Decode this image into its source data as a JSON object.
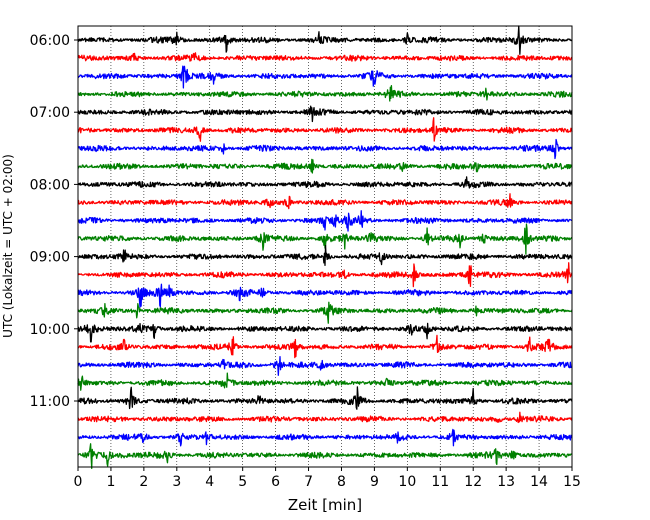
{
  "chart_data": {
    "type": "line",
    "title": "",
    "xlabel": "Zeit  [min]",
    "ylabel": "UTC (Lokalzeit = UTC + 02:00)",
    "xlim": [
      0,
      15
    ],
    "x_ticks": [
      0,
      1,
      2,
      3,
      4,
      5,
      6,
      7,
      8,
      9,
      10,
      11,
      12,
      13,
      14,
      15
    ],
    "x_tick_labels": [
      "0",
      "1",
      "2",
      "3",
      "4",
      "5",
      "6",
      "7",
      "8",
      "9",
      "10",
      "11",
      "12",
      "13",
      "14",
      "15"
    ],
    "y_tick_labels": [
      "06:00",
      "07:00",
      "08:00",
      "09:00",
      "10:00",
      "11:00"
    ],
    "grid": "vertical-dotted",
    "row_colors": [
      "#000000",
      "#ff0000",
      "#0000ff",
      "#008000"
    ],
    "rows": [
      {
        "start": "06:00",
        "color": "#000000",
        "events": [
          [
            3.0,
            6
          ],
          [
            4.5,
            10
          ],
          [
            7.3,
            6
          ],
          [
            13.4,
            14
          ],
          [
            10.0,
            5
          ]
        ]
      },
      {
        "start": "06:15",
        "color": "#ff0000",
        "events": [
          [
            3.6,
            10
          ],
          [
            1.7,
            4
          ]
        ]
      },
      {
        "start": "06:30",
        "color": "#0000ff",
        "events": [
          [
            3.2,
            10
          ],
          [
            3.3,
            8
          ],
          [
            9.0,
            12
          ],
          [
            4.1,
            5
          ]
        ]
      },
      {
        "start": "06:45",
        "color": "#008000",
        "events": [
          [
            9.5,
            9
          ],
          [
            12.4,
            4
          ]
        ]
      },
      {
        "start": "07:00",
        "color": "#000000",
        "events": [
          [
            7.1,
            8
          ]
        ]
      },
      {
        "start": "07:15",
        "color": "#ff0000",
        "events": [
          [
            3.7,
            12
          ],
          [
            10.8,
            10
          ]
        ]
      },
      {
        "start": "07:30",
        "color": "#0000ff",
        "events": [
          [
            4.4,
            5
          ],
          [
            14.5,
            10
          ]
        ]
      },
      {
        "start": "07:45",
        "color": "#008000",
        "events": [
          [
            7.1,
            8
          ],
          [
            9.9,
            8
          ],
          [
            12.1,
            5
          ]
        ]
      },
      {
        "start": "08:00",
        "color": "#000000",
        "events": [
          [
            11.8,
            4
          ]
        ]
      },
      {
        "start": "08:15",
        "color": "#ff0000",
        "events": [
          [
            5.8,
            8
          ],
          [
            6.4,
            6
          ],
          [
            13.1,
            6
          ]
        ]
      },
      {
        "start": "08:30",
        "color": "#0000ff",
        "events": [
          [
            7.5,
            9
          ],
          [
            8.2,
            12
          ],
          [
            8.6,
            8
          ],
          [
            7.8,
            6
          ]
        ]
      },
      {
        "start": "08:45",
        "color": "#008000",
        "events": [
          [
            5.6,
            10
          ],
          [
            7.5,
            10
          ],
          [
            8.1,
            8
          ],
          [
            8.9,
            10
          ],
          [
            10.6,
            9
          ],
          [
            11.6,
            6
          ],
          [
            12.3,
            9
          ],
          [
            13.6,
            14
          ]
        ]
      },
      {
        "start": "09:00",
        "color": "#000000",
        "events": [
          [
            1.4,
            7
          ],
          [
            7.5,
            10
          ],
          [
            9.2,
            6
          ]
        ]
      },
      {
        "start": "09:15",
        "color": "#ff0000",
        "events": [
          [
            10.2,
            10
          ],
          [
            11.9,
            12
          ],
          [
            14.9,
            10
          ],
          [
            8.1,
            6
          ]
        ]
      },
      {
        "start": "09:30",
        "color": "#0000ff",
        "events": [
          [
            1.9,
            12
          ],
          [
            2.5,
            10
          ],
          [
            2.8,
            9
          ],
          [
            4.9,
            7
          ],
          [
            5.6,
            5
          ]
        ]
      },
      {
        "start": "09:45",
        "color": "#008000",
        "events": [
          [
            0.8,
            10
          ],
          [
            1.8,
            6
          ],
          [
            7.6,
            14
          ],
          [
            12.1,
            5
          ]
        ]
      },
      {
        "start": "10:00",
        "color": "#000000",
        "events": [
          [
            0.4,
            10
          ],
          [
            1.9,
            8
          ],
          [
            2.3,
            10
          ],
          [
            10.1,
            7
          ],
          [
            10.6,
            7
          ]
        ]
      },
      {
        "start": "10:15",
        "color": "#ff0000",
        "events": [
          [
            1.4,
            6
          ],
          [
            4.7,
            10
          ],
          [
            6.6,
            10
          ],
          [
            10.9,
            8
          ],
          [
            13.7,
            8
          ],
          [
            14.3,
            10
          ]
        ]
      },
      {
        "start": "10:30",
        "color": "#0000ff",
        "events": [
          [
            4.4,
            5
          ],
          [
            6.1,
            12
          ],
          [
            7.4,
            5
          ]
        ]
      },
      {
        "start": "10:45",
        "color": "#008000",
        "events": [
          [
            0.1,
            9
          ],
          [
            4.5,
            12
          ],
          [
            9.4,
            4
          ]
        ]
      },
      {
        "start": "11:00",
        "color": "#000000",
        "events": [
          [
            1.6,
            12
          ],
          [
            8.5,
            12
          ],
          [
            12.0,
            9
          ],
          [
            5.5,
            5
          ]
        ]
      },
      {
        "start": "11:15",
        "color": "#ff0000",
        "events": [
          [
            12.8,
            6
          ],
          [
            13.4,
            5
          ]
        ]
      },
      {
        "start": "11:30",
        "color": "#0000ff",
        "events": [
          [
            2.0,
            6
          ],
          [
            3.1,
            7
          ],
          [
            3.9,
            5
          ],
          [
            9.7,
            5
          ],
          [
            11.4,
            6
          ]
        ]
      },
      {
        "start": "11:45",
        "color": "#008000",
        "events": [
          [
            0.4,
            12
          ],
          [
            0.9,
            8
          ],
          [
            1.4,
            6
          ],
          [
            2.7,
            10
          ],
          [
            12.7,
            8
          ],
          [
            13.2,
            6
          ]
        ]
      }
    ]
  }
}
